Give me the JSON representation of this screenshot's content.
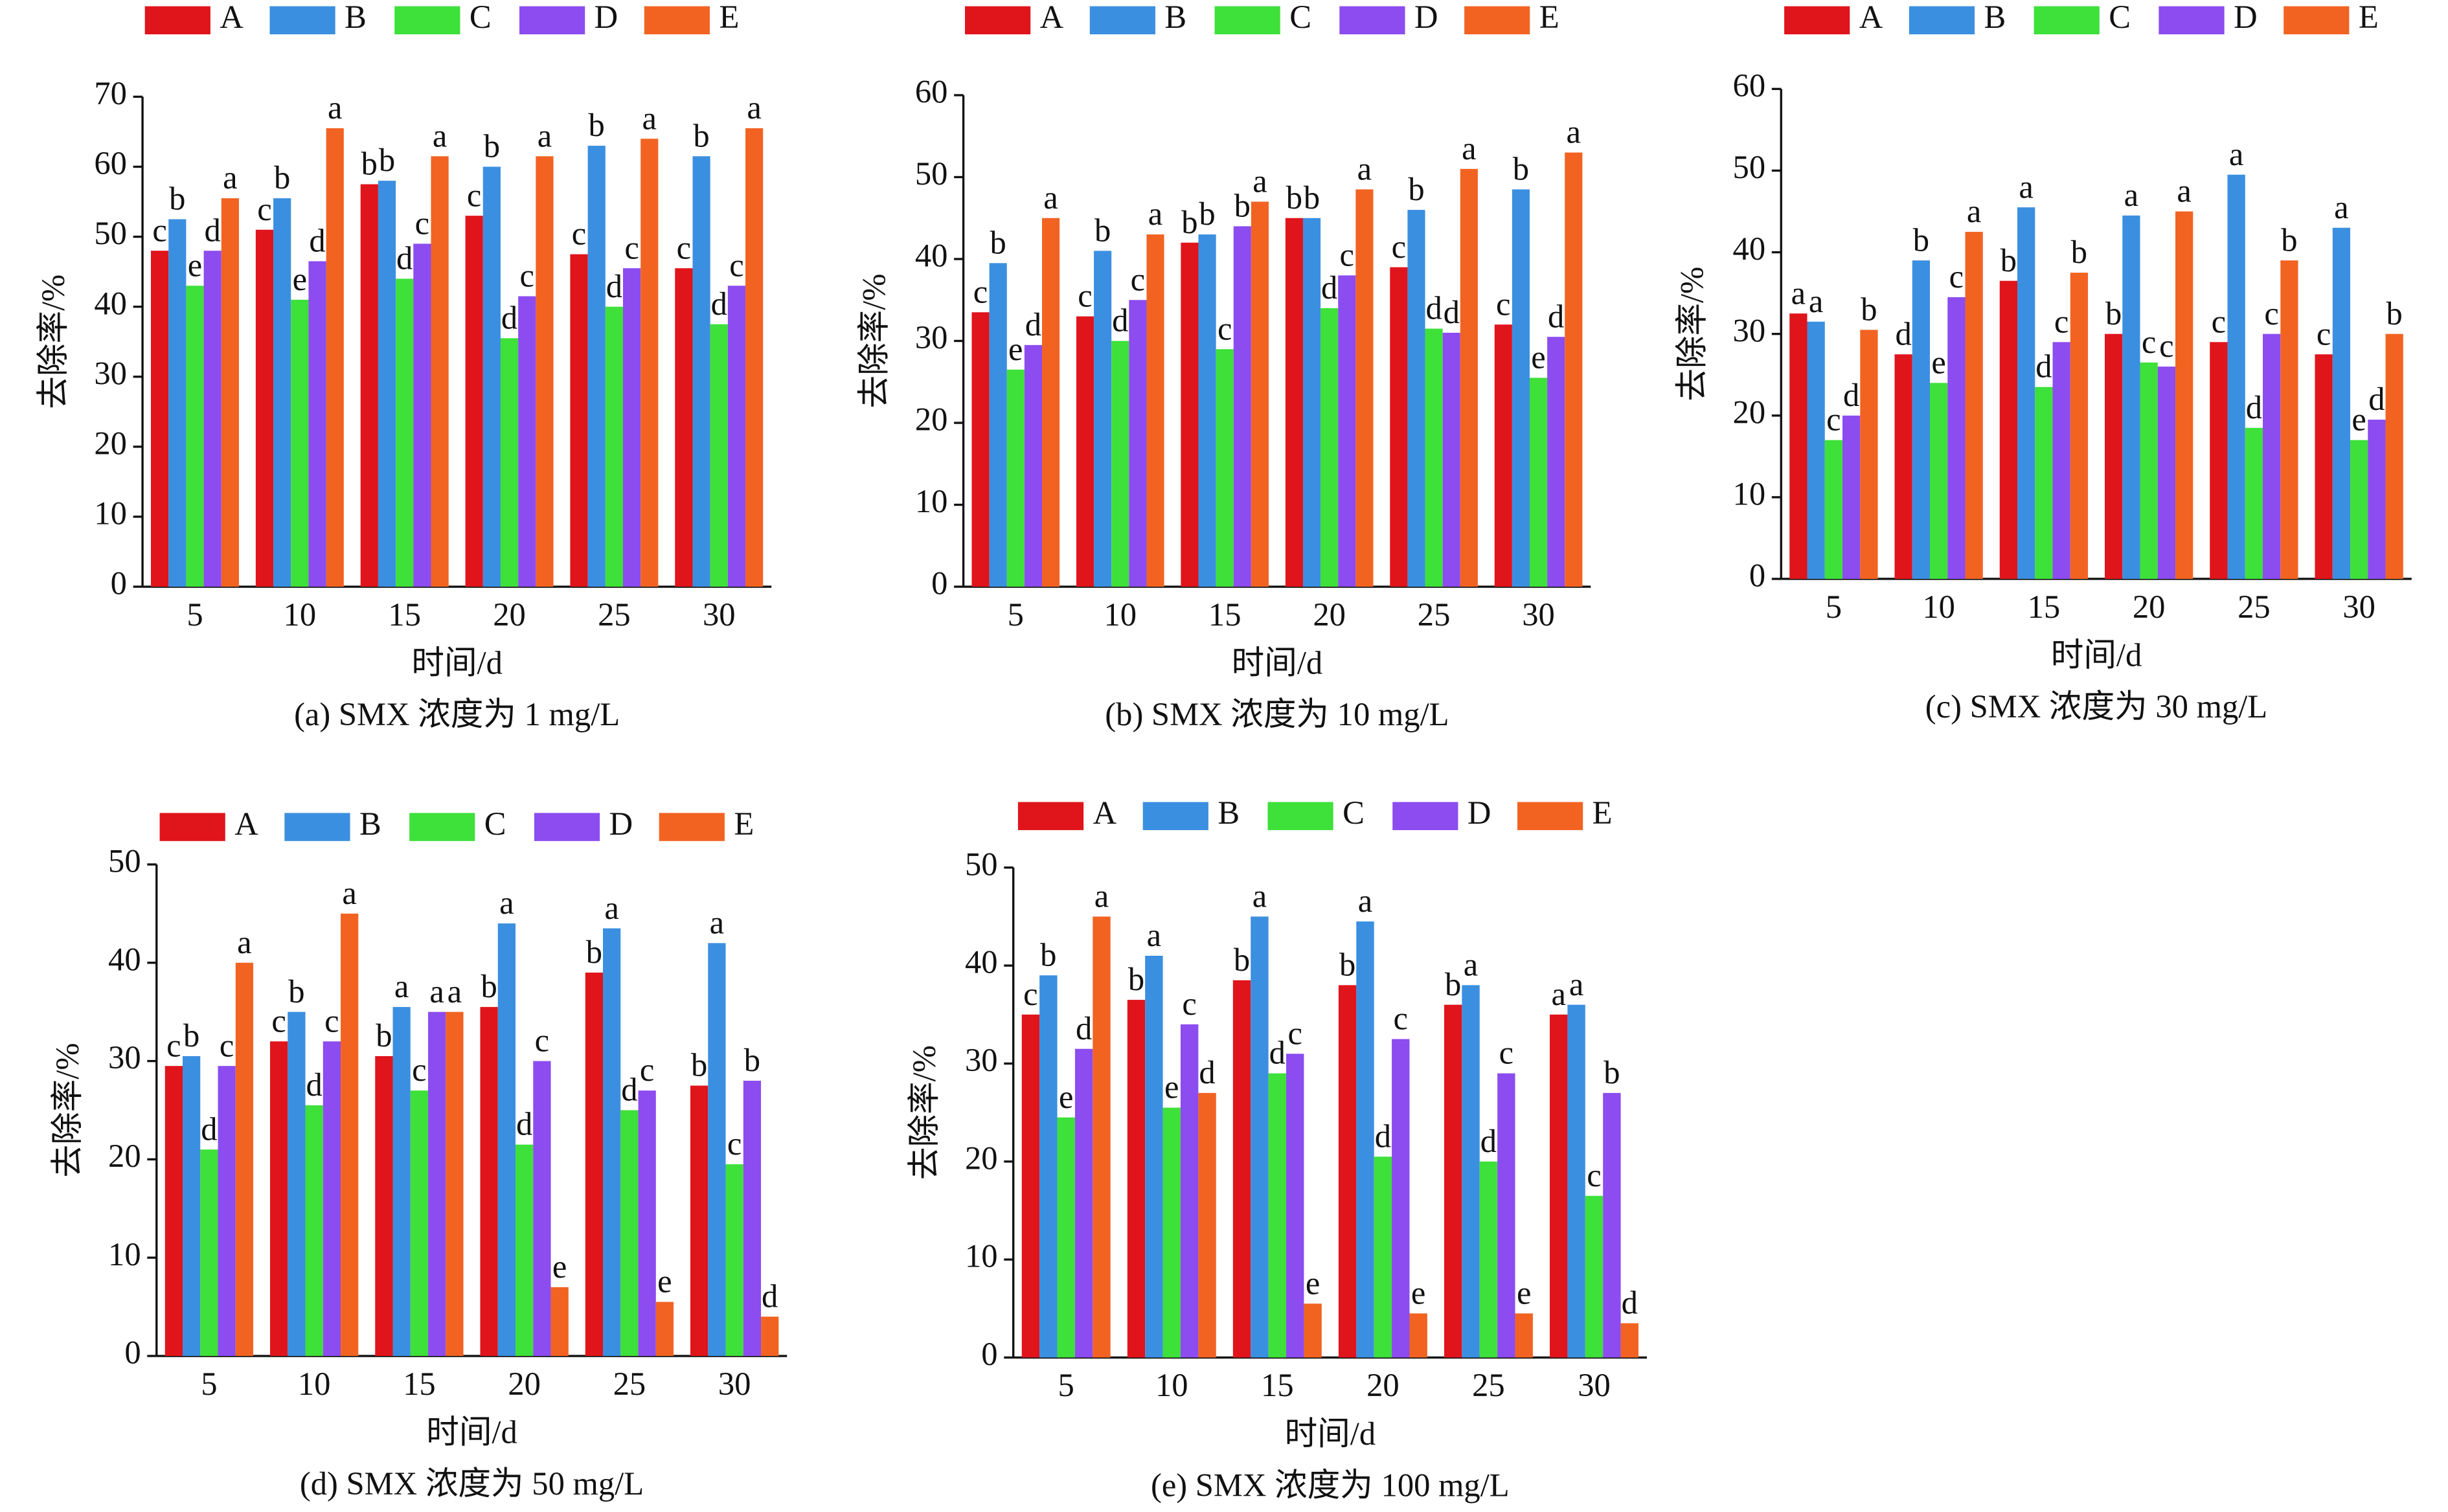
{
  "chart_data": [
    {
      "type": "bar",
      "title": "(a) SMX 浓度为 1 mg/L",
      "xlabel": "时间/d",
      "ylabel": "去除率/%",
      "categories": [
        "5",
        "10",
        "15",
        "20",
        "25",
        "30"
      ],
      "ylim": [
        0,
        70
      ],
      "yticks": [
        0,
        10,
        20,
        30,
        40,
        50,
        60,
        70
      ],
      "legend": "top",
      "series": [
        {
          "name": "A",
          "color": "#e0141b",
          "values": [
            48,
            51,
            57.5,
            53,
            47.5,
            45.5
          ],
          "letters": [
            "c",
            "c",
            "b",
            "c",
            "c",
            "c"
          ]
        },
        {
          "name": "B",
          "color": "#3b8fe0",
          "values": [
            52.5,
            55.5,
            58,
            60,
            63,
            61.5
          ],
          "letters": [
            "b",
            "b",
            "b",
            "b",
            "b",
            "b"
          ]
        },
        {
          "name": "C",
          "color": "#3ee03a",
          "values": [
            43,
            41,
            44,
            35.5,
            40,
            37.5
          ],
          "letters": [
            "e",
            "e",
            "d",
            "d",
            "d",
            "d"
          ]
        },
        {
          "name": "D",
          "color": "#8c4cef",
          "values": [
            48,
            46.5,
            49,
            41.5,
            45.5,
            43
          ],
          "letters": [
            "d",
            "d",
            "c",
            "c",
            "c",
            "c"
          ]
        },
        {
          "name": "E",
          "color": "#f26322",
          "values": [
            55.5,
            65.5,
            61.5,
            61.5,
            64,
            65.5
          ],
          "letters": [
            "a",
            "a",
            "a",
            "a",
            "a",
            "a"
          ]
        }
      ]
    },
    {
      "type": "bar",
      "title": "(b) SMX 浓度为 10 mg/L",
      "xlabel": "时间/d",
      "ylabel": "去除率/%",
      "categories": [
        "5",
        "10",
        "15",
        "20",
        "25",
        "30"
      ],
      "ylim": [
        0,
        60
      ],
      "yticks": [
        0,
        10,
        20,
        30,
        40,
        50,
        60
      ],
      "legend": "top",
      "series": [
        {
          "name": "A",
          "color": "#e0141b",
          "values": [
            33.5,
            33,
            42,
            45,
            39,
            32
          ],
          "letters": [
            "c",
            "c",
            "b",
            "b",
            "c",
            "c"
          ]
        },
        {
          "name": "B",
          "color": "#3b8fe0",
          "values": [
            39.5,
            41,
            43,
            45,
            46,
            48.5
          ],
          "letters": [
            "b",
            "b",
            "b",
            "b",
            "b",
            "b"
          ]
        },
        {
          "name": "C",
          "color": "#3ee03a",
          "values": [
            26.5,
            30,
            29,
            34,
            31.5,
            25.5
          ],
          "letters": [
            "e",
            "d",
            "c",
            "d",
            "d",
            "e"
          ]
        },
        {
          "name": "D",
          "color": "#8c4cef",
          "values": [
            29.5,
            35,
            44,
            38,
            31,
            30.5
          ],
          "letters": [
            "d",
            "c",
            "b",
            "c",
            "d",
            "d"
          ]
        },
        {
          "name": "E",
          "color": "#f26322",
          "values": [
            45,
            43,
            47,
            48.5,
            51,
            53
          ],
          "letters": [
            "a",
            "a",
            "a",
            "a",
            "a",
            "a"
          ]
        }
      ]
    },
    {
      "type": "bar",
      "title": "(c) SMX 浓度为  30 mg/L",
      "xlabel": "时间/d",
      "ylabel": "去除率/%",
      "categories": [
        "5",
        "10",
        "15",
        "20",
        "25",
        "30"
      ],
      "ylim": [
        0,
        60
      ],
      "yticks": [
        0,
        10,
        20,
        30,
        40,
        50,
        60
      ],
      "legend": "top",
      "series": [
        {
          "name": "A",
          "color": "#e0141b",
          "values": [
            32.5,
            27.5,
            36.5,
            30,
            29,
            27.5
          ],
          "letters": [
            "a",
            "d",
            "b",
            "b",
            "c",
            "c"
          ]
        },
        {
          "name": "B",
          "color": "#3b8fe0",
          "values": [
            31.5,
            39,
            45.5,
            44.5,
            49.5,
            43
          ],
          "letters": [
            "a",
            "b",
            "a",
            "a",
            "a",
            "a"
          ]
        },
        {
          "name": "C",
          "color": "#3ee03a",
          "values": [
            17,
            24,
            23.5,
            26.5,
            18.5,
            17
          ],
          "letters": [
            "c",
            "e",
            "d",
            "c",
            "d",
            "e"
          ]
        },
        {
          "name": "D",
          "color": "#8c4cef",
          "values": [
            20,
            34.5,
            29,
            26,
            30,
            19.5
          ],
          "letters": [
            "d",
            "c",
            "c",
            "c",
            "c",
            "d"
          ]
        },
        {
          "name": "E",
          "color": "#f26322",
          "values": [
            30.5,
            42.5,
            37.5,
            45,
            39,
            30
          ],
          "letters": [
            "b",
            "a",
            "b",
            "a",
            "b",
            "b"
          ]
        }
      ]
    },
    {
      "type": "bar",
      "title": "(d) SMX 浓度为  50 mg/L",
      "xlabel": "时间/d",
      "ylabel": "去除率/%",
      "categories": [
        "5",
        "10",
        "15",
        "20",
        "25",
        "30"
      ],
      "ylim": [
        0,
        50
      ],
      "yticks": [
        0,
        10,
        20,
        30,
        40,
        50
      ],
      "legend": "top",
      "series": [
        {
          "name": "A",
          "color": "#e0141b",
          "values": [
            29.5,
            32,
            30.5,
            35.5,
            39,
            27.5
          ],
          "letters": [
            "c",
            "c",
            "b",
            "b",
            "b",
            "b"
          ]
        },
        {
          "name": "B",
          "color": "#3b8fe0",
          "values": [
            30.5,
            35,
            35.5,
            44,
            43.5,
            42
          ],
          "letters": [
            "b",
            "b",
            "a",
            "a",
            "a",
            "a"
          ]
        },
        {
          "name": "C",
          "color": "#3ee03a",
          "values": [
            21,
            25.5,
            27,
            21.5,
            25,
            19.5
          ],
          "letters": [
            "d",
            "d",
            "c",
            "d",
            "d",
            "c"
          ]
        },
        {
          "name": "D",
          "color": "#8c4cef",
          "values": [
            29.5,
            32,
            35,
            30,
            27,
            28
          ],
          "letters": [
            "c",
            "c",
            "a",
            "c",
            "c",
            "b"
          ]
        },
        {
          "name": "E",
          "color": "#f26322",
          "values": [
            40,
            45,
            35,
            7,
            5.5,
            4
          ],
          "letters": [
            "a",
            "a",
            "a",
            "e",
            "e",
            "d"
          ]
        }
      ]
    },
    {
      "type": "bar",
      "title": "(e) SMX 浓度为  100 mg/L",
      "xlabel": "时间/d",
      "ylabel": "去除率/%",
      "categories": [
        "5",
        "10",
        "15",
        "20",
        "25",
        "30"
      ],
      "ylim": [
        0,
        50
      ],
      "yticks": [
        0,
        10,
        20,
        30,
        40,
        50
      ],
      "legend": "top",
      "series": [
        {
          "name": "A",
          "color": "#e0141b",
          "values": [
            35,
            36.5,
            38.5,
            38,
            36,
            35
          ],
          "letters": [
            "c",
            "b",
            "b",
            "b",
            "b",
            "a"
          ]
        },
        {
          "name": "B",
          "color": "#3b8fe0",
          "values": [
            39,
            41,
            45,
            44.5,
            38,
            36
          ],
          "letters": [
            "b",
            "a",
            "a",
            "a",
            "a",
            "a"
          ]
        },
        {
          "name": "C",
          "color": "#3ee03a",
          "values": [
            24.5,
            25.5,
            29,
            20.5,
            20,
            16.5
          ],
          "letters": [
            "e",
            "e",
            "d",
            "d",
            "d",
            "c"
          ]
        },
        {
          "name": "D",
          "color": "#8c4cef",
          "values": [
            31.5,
            34,
            31,
            32.5,
            29,
            27
          ],
          "letters": [
            "d",
            "c",
            "c",
            "c",
            "c",
            "b"
          ]
        },
        {
          "name": "E",
          "color": "#f26322",
          "values": [
            45,
            27,
            5.5,
            4.5,
            4.5,
            3.5
          ],
          "letters": [
            "a",
            "d",
            "e",
            "e",
            "e",
            "d"
          ]
        }
      ]
    }
  ]
}
